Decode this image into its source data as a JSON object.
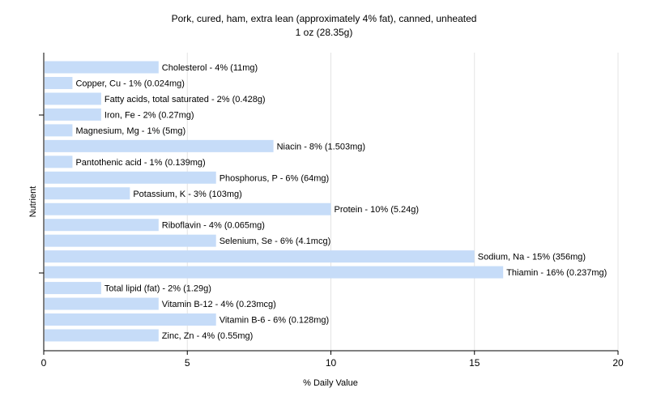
{
  "chart_data": {
    "type": "bar",
    "orientation": "horizontal",
    "title": "Pork, cured, ham, extra lean (approximately 4% fat), canned, unheated",
    "subtitle": "1 oz (28.35g)",
    "xlabel": "% Daily Value",
    "ylabel": "Nutrient",
    "xlim": [
      0,
      20
    ],
    "xticks": [
      0,
      5,
      10,
      15,
      20
    ],
    "grid": true,
    "legend": "none",
    "bar_color": "#c6dcf8",
    "categories": [
      "Cholesterol",
      "Copper, Cu",
      "Fatty acids, total saturated",
      "Iron, Fe",
      "Magnesium, Mg",
      "Niacin",
      "Pantothenic acid",
      "Phosphorus, P",
      "Potassium, K",
      "Protein",
      "Riboflavin",
      "Selenium, Se",
      "Sodium, Na",
      "Thiamin",
      "Total lipid (fat)",
      "Vitamin B-12",
      "Vitamin B-6",
      "Zinc, Zn"
    ],
    "values": [
      4,
      1,
      2,
      2,
      1,
      8,
      1,
      6,
      3,
      10,
      4,
      6,
      15,
      16,
      2,
      4,
      6,
      4
    ],
    "labels": [
      "Cholesterol - 4% (11mg)",
      "Copper, Cu - 1% (0.024mg)",
      "Fatty acids, total saturated - 2% (0.428g)",
      "Iron, Fe - 2% (0.27mg)",
      "Magnesium, Mg - 1% (5mg)",
      "Niacin - 8% (1.503mg)",
      "Pantothenic acid - 1% (0.139mg)",
      "Phosphorus, P - 6% (64mg)",
      "Potassium, K - 3% (103mg)",
      "Protein - 10% (5.24g)",
      "Riboflavin - 4% (0.065mg)",
      "Selenium, Se - 6% (4.1mcg)",
      "Sodium, Na - 15% (356mg)",
      "Thiamin - 16% (0.237mg)",
      "Total lipid (fat) - 2% (1.29g)",
      "Vitamin B-12 - 4% (0.23mcg)",
      "Vitamin B-6 - 6% (0.128mg)",
      "Zinc, Zn - 4% (0.55mg)"
    ]
  }
}
